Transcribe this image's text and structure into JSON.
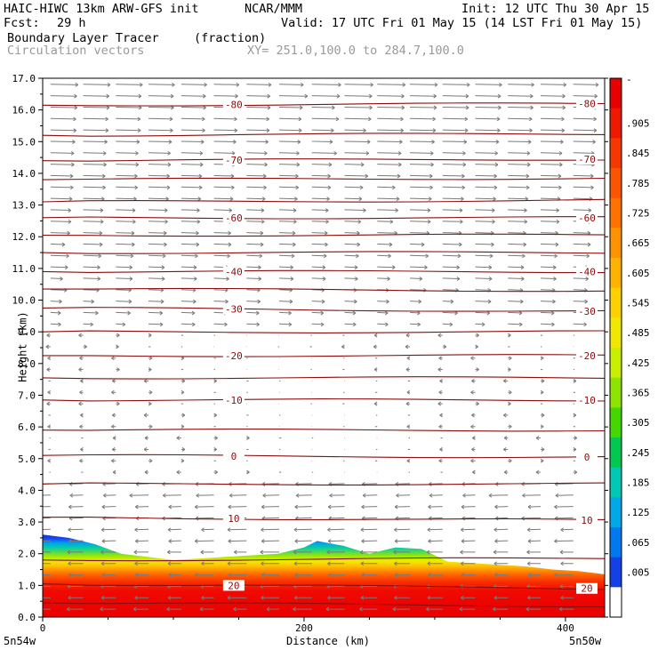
{
  "header": {
    "model_title": "HAIC-HIWC 13km ARW-GFS init",
    "org": "NCAR/MMM",
    "init": "Init: 12 UTC Thu 30 Apr 15",
    "fcst_label": "Fcst:",
    "fcst_value": "29 h",
    "valid": "Valid: 17 UTC Fri 01 May 15 (14 LST Fri 01 May 15)",
    "field_name": "Boundary Layer Tracer",
    "field_units": "(fraction)",
    "overlay_name": "Circulation vectors",
    "xy_range": "XY= 251.0,100.0 to 284.7,100.0"
  },
  "chart_data": {
    "type": "heatmap",
    "xlabel": "Distance (km)",
    "ylabel": "Height (km)",
    "xlim": [
      0,
      430
    ],
    "ylim": [
      0,
      17
    ],
    "x_ticks": [
      0,
      200,
      400
    ],
    "x_tick_labels": [
      "0",
      "200",
      "400"
    ],
    "y_ticks": [
      0,
      1,
      2,
      3,
      4,
      5,
      6,
      7,
      8,
      9,
      10,
      11,
      12,
      13,
      14,
      15,
      16,
      17
    ],
    "y_tick_labels": [
      "0.0",
      "1.0",
      "2.0",
      "3.0",
      "4.0",
      "5.0",
      "6.0",
      "7.0",
      "8.0",
      "9.0",
      "10.0",
      "11.0",
      "12.0",
      "13.0",
      "14.0",
      "15.0",
      "16.0",
      "17.0"
    ],
    "left_endpoint_label": "5n54w",
    "right_endpoint_label": "5n50w",
    "tracer_top_km": {
      "x": [
        0,
        20,
        40,
        60,
        80,
        100,
        120,
        140,
        160,
        180,
        200,
        210,
        230,
        250,
        260,
        270,
        290,
        300,
        310,
        330,
        350,
        370,
        390,
        410,
        430
      ],
      "z": [
        2.6,
        2.5,
        2.3,
        2.0,
        1.9,
        1.8,
        1.85,
        1.9,
        1.95,
        2.0,
        2.2,
        2.4,
        2.25,
        2.0,
        2.1,
        2.2,
        2.15,
        1.95,
        1.75,
        1.7,
        1.65,
        1.6,
        1.5,
        1.45,
        1.35
      ]
    },
    "temperature_contours": [
      {
        "label": "-80",
        "z_left": 16.15,
        "z_right": 16.2
      },
      {
        "label": "",
        "z_left": 15.2,
        "z_right": 15.25
      },
      {
        "label": "-70",
        "z_left": 14.4,
        "z_right": 14.45
      },
      {
        "label": "",
        "z_left": 13.8,
        "z_right": 13.85
      },
      {
        "label": "",
        "z_left": 13.1,
        "z_right": 13.15
      },
      {
        "label": "-60",
        "z_left": 12.6,
        "z_right": 12.6
      },
      {
        "label": "",
        "z_left": 12.05,
        "z_right": 12.05
      },
      {
        "label": "",
        "z_left": 11.5,
        "z_right": 11.5
      },
      {
        "label": "-40",
        "z_left": 10.9,
        "z_right": 10.9
      },
      {
        "label": "",
        "z_left": 10.35,
        "z_right": 10.3
      },
      {
        "label": "-30",
        "z_left": 9.75,
        "z_right": 9.65
      },
      {
        "label": "",
        "z_left": 9.0,
        "z_right": 9.0
      },
      {
        "label": "-20",
        "z_left": 8.25,
        "z_right": 8.25
      },
      {
        "label": "",
        "z_left": 7.55,
        "z_right": 7.55
      },
      {
        "label": "-10",
        "z_left": 6.85,
        "z_right": 6.85
      },
      {
        "label": "",
        "z_left": 5.9,
        "z_right": 5.9
      },
      {
        "label": "0",
        "z_left": 5.1,
        "z_right": 5.05
      },
      {
        "label": "",
        "z_left": 4.2,
        "z_right": 4.2
      },
      {
        "label": "10",
        "z_left": 3.15,
        "z_right": 3.05
      },
      {
        "label": "",
        "z_left": 1.8,
        "z_right": 1.85
      },
      {
        "label": "20",
        "z_left": 1.05,
        "z_right": 0.9
      },
      {
        "label": "",
        "z_left": 0.45,
        "z_right": 0.35
      }
    ],
    "colorbar": {
      "labels": [
        "-",
        ".905",
        ".845",
        ".785",
        ".725",
        ".665",
        ".605",
        ".545",
        ".485",
        ".425",
        ".365",
        ".305",
        ".245",
        ".185",
        ".125",
        ".065",
        ".005"
      ],
      "colors": [
        "#e60000",
        "#ee1a00",
        "#f53800",
        "#fa5500",
        "#ff7200",
        "#ff9200",
        "#ffb200",
        "#ffd000",
        "#f0e800",
        "#c8ee00",
        "#8ee400",
        "#44d800",
        "#00c850",
        "#00c8b4",
        "#00a8e8",
        "#0078f0",
        "#1440e6",
        "#ffffff"
      ]
    }
  }
}
